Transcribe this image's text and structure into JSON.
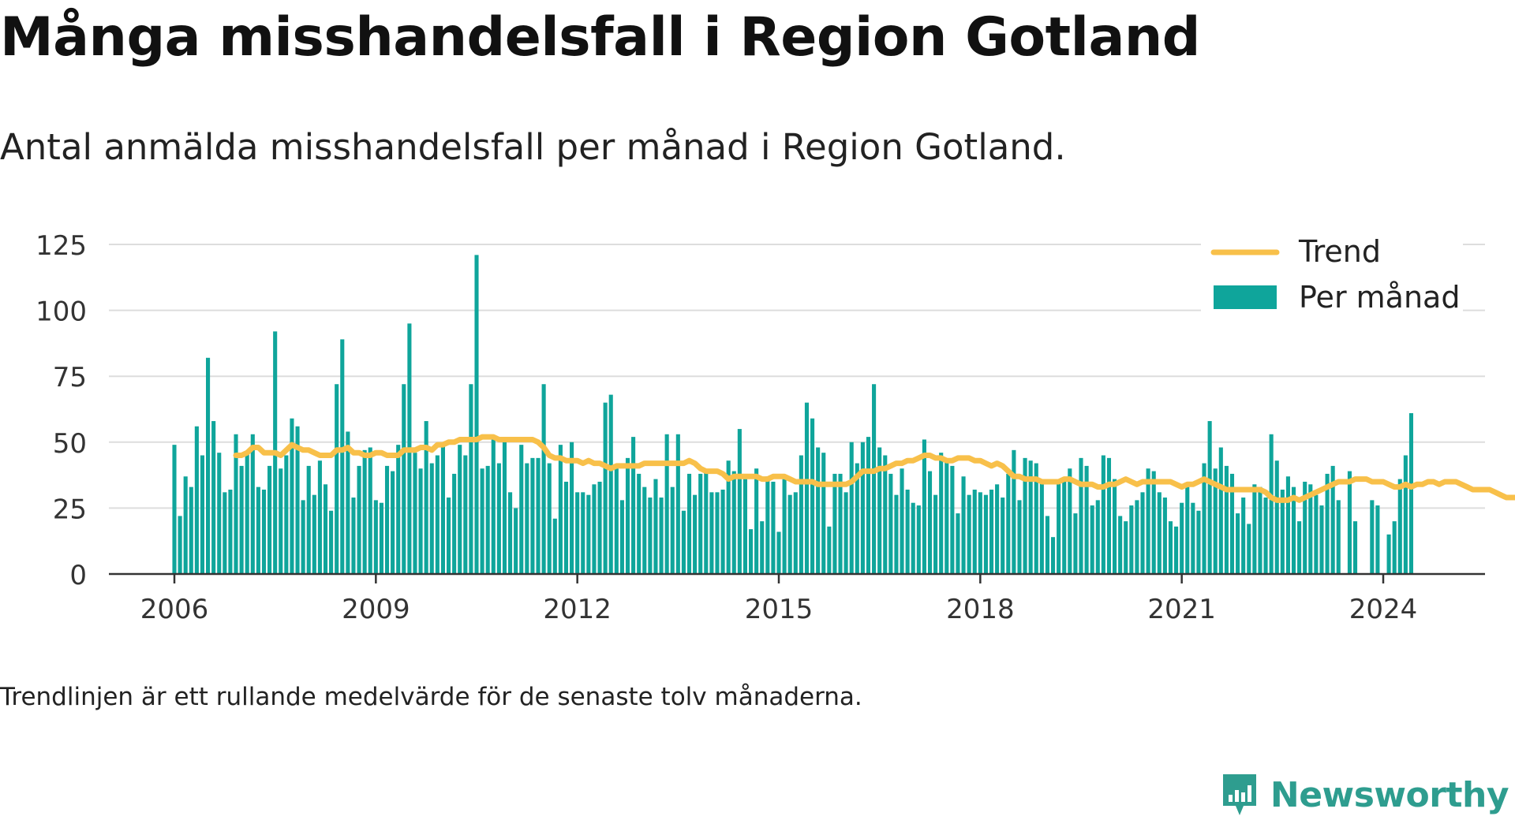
{
  "title": "Många misshandelsfall i Region Gotland",
  "subtitle": "Antal anmälda misshandelsfall per månad i Region Gotland.",
  "note": "Trendlinjen är ett rullande medelvärde för de senaste tolv månaderna.",
  "brand": {
    "name": "Newsworthy",
    "icon": "newsworthy-logo-icon"
  },
  "colors": {
    "bar": "#0fa59b",
    "trend": "#f8c04a",
    "grid": "#dddddd",
    "axis": "#333333"
  },
  "chart_data": {
    "type": "bar",
    "title": "",
    "xlabel": "",
    "ylabel": "",
    "ylim": [
      0,
      125
    ],
    "yticks": [
      "0",
      "25",
      "50",
      "75",
      "100",
      "125"
    ],
    "xticks": [
      "2006",
      "2009",
      "2012",
      "2015",
      "2018",
      "2021",
      "2024"
    ],
    "x_range": [
      "2005-01",
      "2024-12"
    ],
    "grid": true,
    "legend_position": "top-right",
    "start_month": "2006-01",
    "series": [
      {
        "name": "Per månad",
        "type": "bar",
        "values": [
          49,
          22,
          37,
          33,
          56,
          45,
          82,
          58,
          46,
          31,
          32,
          53,
          41,
          46,
          53,
          33,
          32,
          41,
          92,
          40,
          45,
          59,
          56,
          28,
          41,
          30,
          43,
          34,
          24,
          72,
          89,
          54,
          29,
          41,
          47,
          48,
          28,
          27,
          41,
          39,
          49,
          72,
          95,
          46,
          40,
          58,
          42,
          45,
          49,
          29,
          38,
          49,
          45,
          72,
          121,
          40,
          41,
          51,
          42,
          52,
          31,
          25,
          49,
          42,
          44,
          44,
          72,
          42,
          21,
          49,
          35,
          50,
          31,
          31,
          30,
          34,
          35,
          65,
          68,
          40,
          28,
          44,
          52,
          38,
          33,
          29,
          36,
          29,
          53,
          33,
          53,
          24,
          38,
          30,
          38,
          39,
          31,
          31,
          32,
          43,
          39,
          55,
          36,
          17,
          40,
          20,
          37,
          35,
          16,
          36,
          30,
          31,
          45,
          65,
          59,
          48,
          46,
          18,
          38,
          38,
          31,
          50,
          42,
          50,
          52,
          72,
          48,
          45,
          38,
          30,
          40,
          32,
          27,
          26,
          51,
          39,
          30,
          46,
          43,
          41,
          23,
          37,
          30,
          32,
          31,
          30,
          32,
          34,
          29,
          38,
          47,
          28,
          44,
          43,
          42,
          35,
          22,
          14,
          35,
          36,
          40,
          23,
          44,
          41,
          26,
          28,
          45,
          44,
          36,
          22,
          20,
          26,
          28,
          31,
          40,
          39,
          31,
          29,
          20,
          18,
          27,
          33,
          27,
          24,
          42,
          58,
          40,
          48,
          41,
          38,
          23,
          29,
          19,
          34,
          33,
          29,
          53,
          43,
          32,
          37,
          33,
          20,
          35,
          34,
          30,
          26,
          38,
          41,
          28,
          0,
          39,
          20,
          0,
          0,
          28,
          26,
          0,
          15,
          20,
          36,
          45,
          61
        ]
      },
      {
        "name": "Trend",
        "type": "line",
        "start_month": "2006-12",
        "values": [
          45,
          45,
          46,
          48,
          48,
          46,
          46,
          46,
          45,
          47,
          49,
          48,
          47,
          47,
          46,
          45,
          45,
          45,
          47,
          47,
          48,
          46,
          46,
          45,
          45,
          46,
          46,
          45,
          45,
          45,
          47,
          47,
          47,
          48,
          48,
          47,
          49,
          49,
          50,
          50,
          51,
          51,
          51,
          51,
          52,
          52,
          52,
          51,
          51,
          51,
          51,
          51,
          51,
          51,
          50,
          48,
          45,
          44,
          44,
          43,
          43,
          43,
          42,
          43,
          42,
          42,
          41,
          40,
          41,
          41,
          41,
          41,
          41,
          42,
          42,
          42,
          42,
          42,
          42,
          42,
          42,
          43,
          42,
          40,
          39,
          39,
          39,
          38,
          36,
          37,
          37,
          37,
          37,
          37,
          36,
          36,
          37,
          37,
          37,
          36,
          35,
          35,
          35,
          35,
          34,
          34,
          34,
          34,
          34,
          34,
          35,
          37,
          39,
          39,
          39,
          40,
          40,
          41,
          42,
          42,
          43,
          43,
          44,
          45,
          45,
          44,
          44,
          43,
          43,
          44,
          44,
          44,
          43,
          43,
          42,
          41,
          42,
          41,
          39,
          37,
          37,
          36,
          36,
          36,
          35,
          35,
          35,
          35,
          36,
          36,
          35,
          34,
          34,
          34,
          33,
          33,
          34,
          34,
          35,
          36,
          35,
          34,
          35,
          35,
          35,
          35,
          35,
          35,
          34,
          33,
          34,
          34,
          35,
          36,
          35,
          34,
          33,
          32,
          32,
          32,
          32,
          32,
          32,
          32,
          31,
          29,
          28,
          28,
          28,
          29,
          28,
          29,
          30,
          31,
          32,
          33,
          34,
          35,
          35,
          35,
          36,
          36,
          36,
          35,
          35,
          35,
          34,
          33,
          33,
          34,
          33,
          34,
          34,
          35,
          35,
          34,
          35,
          35,
          35,
          34,
          33,
          32,
          32,
          32,
          32,
          31,
          30,
          29,
          29,
          29,
          30,
          34
        ]
      }
    ]
  }
}
